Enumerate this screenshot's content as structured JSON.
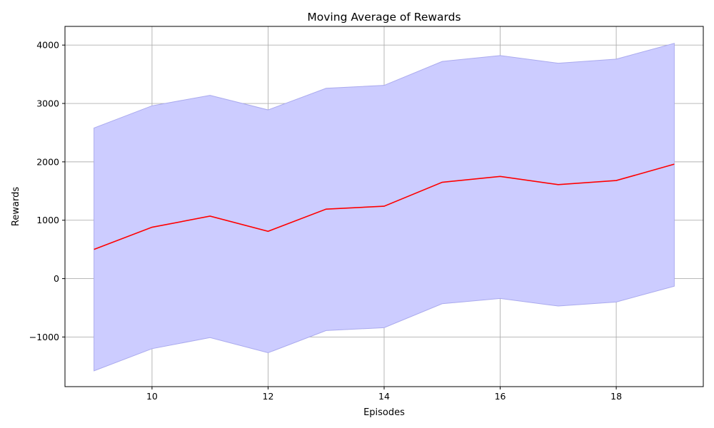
{
  "chart_data": {
    "type": "line",
    "title": "Moving Average of Rewards",
    "xlabel": "Episodes",
    "ylabel": "Rewards",
    "grid": true,
    "xlim": [
      8.5,
      19.5
    ],
    "ylim": [
      -1850,
      4320
    ],
    "xticks": [
      10,
      12,
      14,
      16,
      18
    ],
    "yticks": [
      -1000,
      0,
      1000,
      2000,
      3000,
      4000
    ],
    "ytick_labels": [
      "−1000",
      "0",
      "1000",
      "2000",
      "3000",
      "4000"
    ],
    "x": [
      9,
      10,
      11,
      12,
      13,
      14,
      15,
      16,
      17,
      18,
      19
    ],
    "series": [
      {
        "values": [
          500,
          880,
          1070,
          810,
          1190,
          1240,
          1650,
          1750,
          1610,
          1680,
          1960
        ],
        "color": "#ff0000"
      }
    ],
    "band": {
      "lower": [
        -1580,
        -1200,
        -1010,
        -1270,
        -890,
        -840,
        -430,
        -340,
        -470,
        -400,
        -130
      ],
      "upper": [
        2580,
        2960,
        3140,
        2890,
        3260,
        3310,
        3720,
        3820,
        3690,
        3760,
        4030
      ],
      "fill_color": "#ccccff",
      "edge_color": "#aaaaee"
    }
  }
}
